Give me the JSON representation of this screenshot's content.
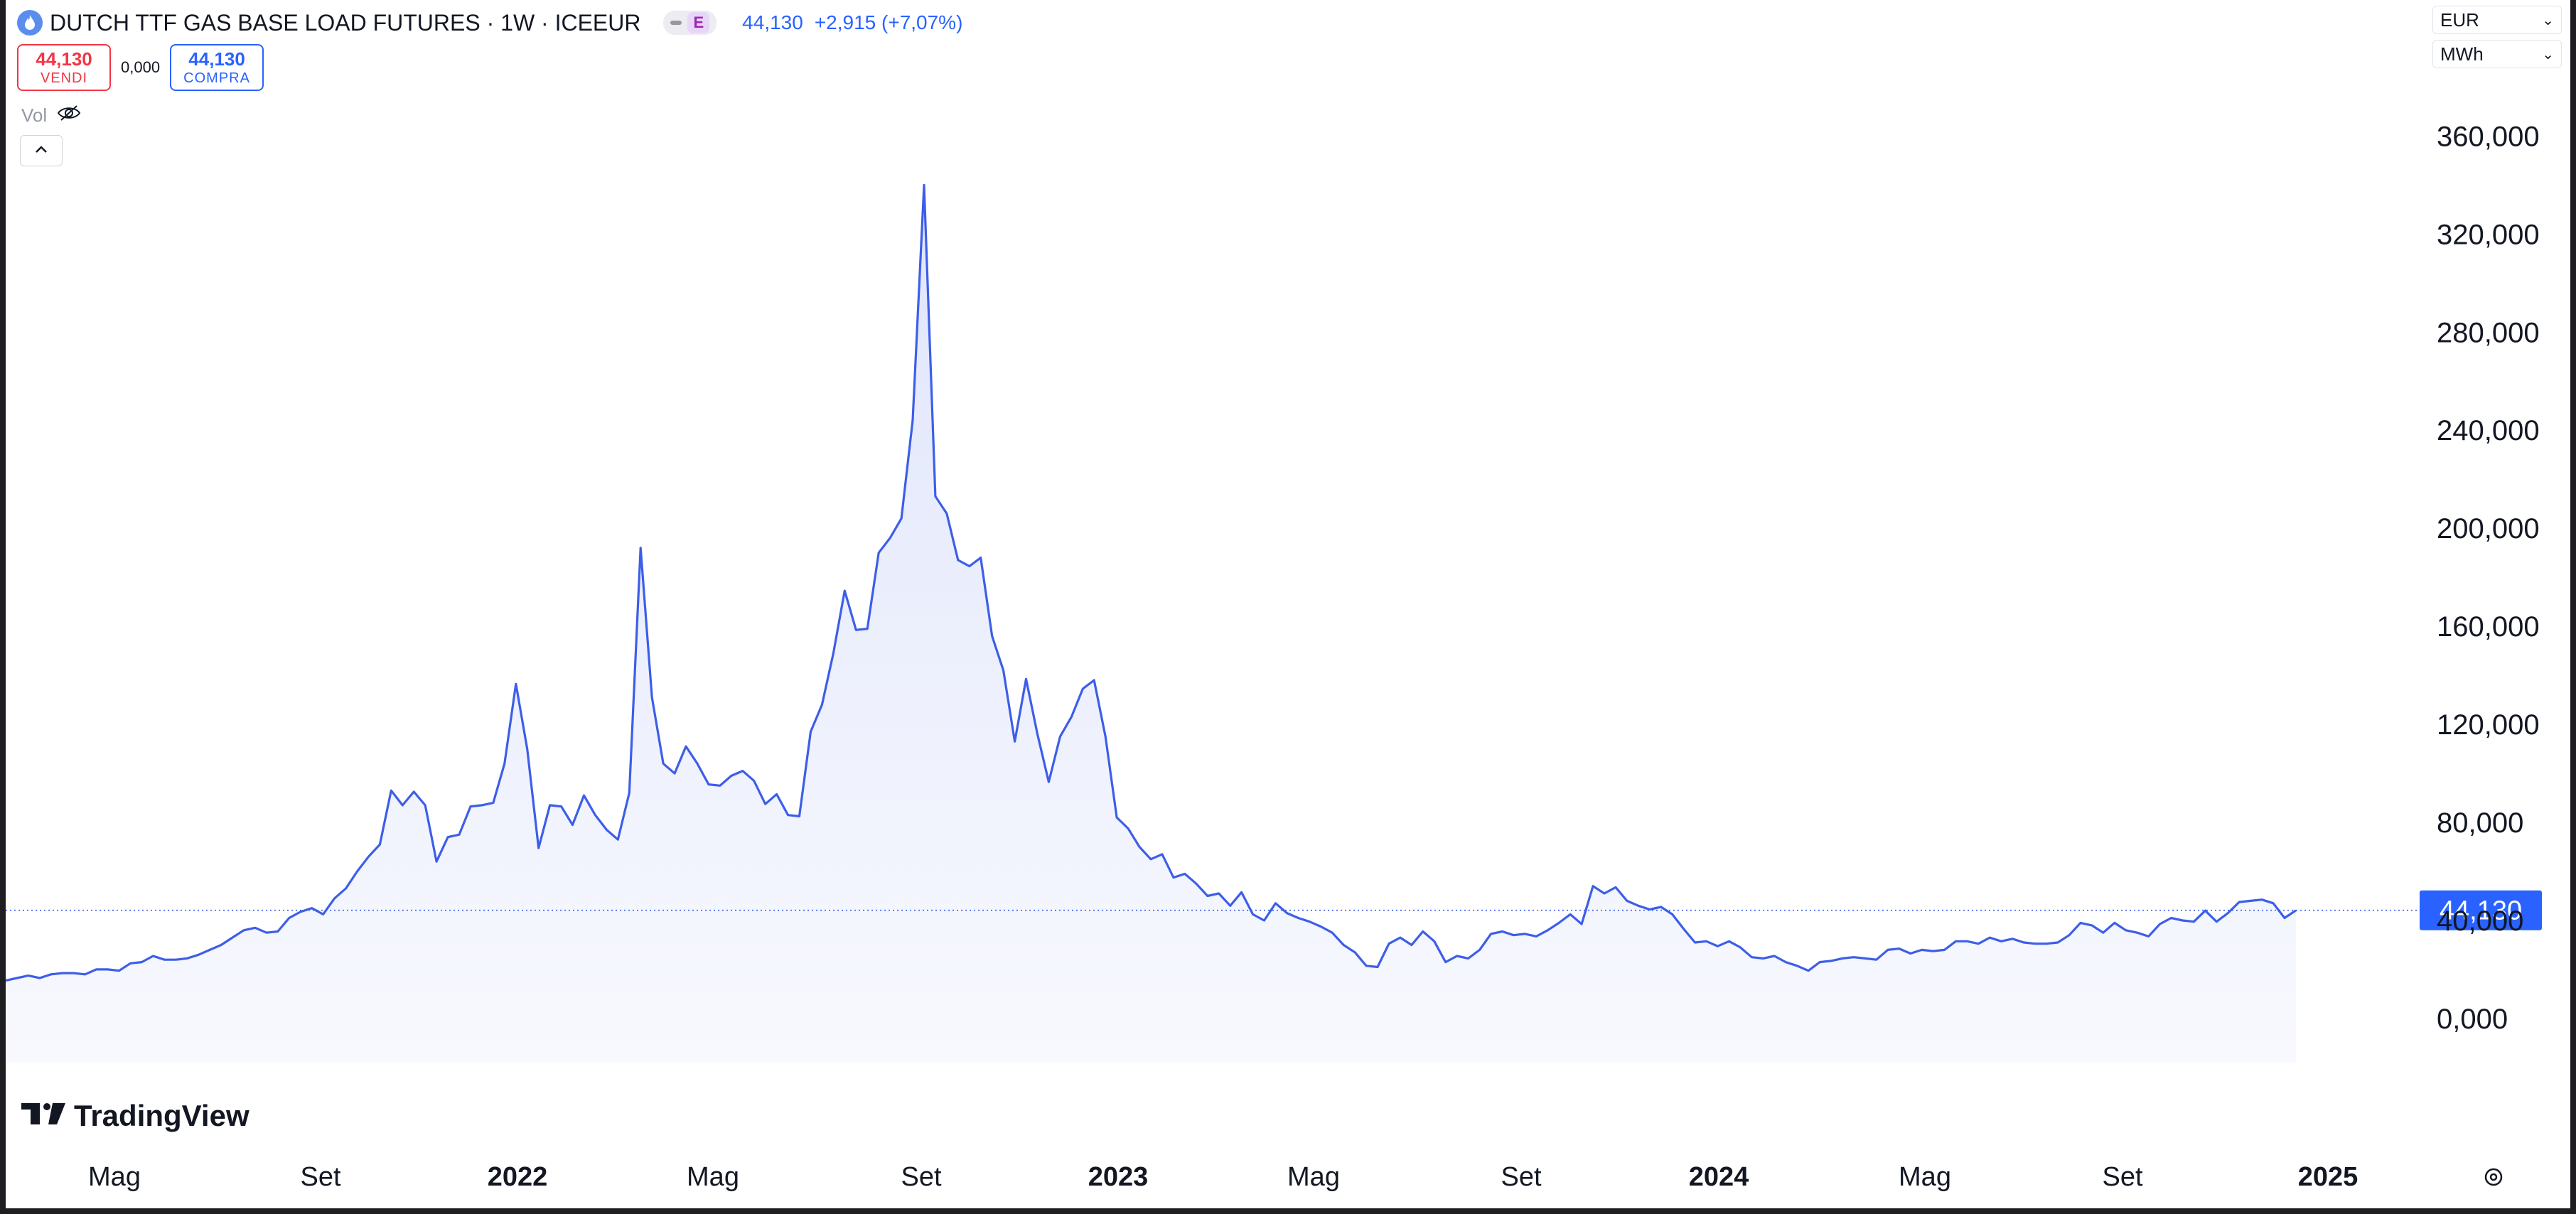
{
  "header": {
    "symbol_title": "DUTCH TTF GAS BASE LOAD FUTURES · 1W · ICEEUR",
    "exchange_badge": "E",
    "last_price": "44,130",
    "change": "+2,915 (+7,07%)"
  },
  "trade": {
    "sell_price": "44,130",
    "sell_label": "VENDI",
    "spread": "0,000",
    "buy_price": "44,130",
    "buy_label": "COMPRA"
  },
  "volume_label": "Vol",
  "currency_select": "EUR",
  "unit_select": "MWh",
  "watermark": "TradingView",
  "colors": {
    "line": "#3d5ee8",
    "area_top": "#dfe5fb",
    "area_bottom": "#f8f9fe",
    "price_label_bg": "#2962ff",
    "sell": "#f23645",
    "buy": "#2962ff"
  },
  "icons": [
    "flame-icon",
    "eye-off-icon",
    "chevron-up-icon",
    "chevron-down-icon",
    "settings-icon",
    "tradingview-logo-icon"
  ],
  "chart_data": {
    "type": "area",
    "title": "DUTCH TTF GAS BASE LOAD FUTURES · 1W · ICEEUR",
    "x_tick_labels": [
      "Mag",
      "Set",
      "2022",
      "Mag",
      "Set",
      "2023",
      "Mag",
      "Set",
      "2024",
      "Mag",
      "Set",
      "2025"
    ],
    "x_tick_bold": [
      false,
      false,
      true,
      false,
      false,
      true,
      false,
      false,
      true,
      false,
      false,
      true
    ],
    "y_tick_labels": [
      "0,000",
      "40,000",
      "80,000",
      "120,000",
      "160,000",
      "200,000",
      "240,000",
      "280,000",
      "320,000",
      "360,000"
    ],
    "y_tick_values": [
      0,
      40,
      80,
      120,
      160,
      200,
      240,
      280,
      320,
      360
    ],
    "ylim": [
      -18,
      372
    ],
    "y_unit": "EUR / MWh",
    "last_value_label": "44,130",
    "last_value": 44.13,
    "grid": false,
    "series": [
      {
        "values": [
          15.5,
          16.5,
          17.5,
          16.5,
          18,
          18.5,
          18.5,
          18,
          20,
          20,
          19.5,
          22.5,
          23,
          25.5,
          24,
          24,
          24.5,
          26,
          28,
          30,
          33,
          36,
          37,
          35,
          35.5,
          41,
          43.5,
          45,
          42.5,
          49,
          53,
          60,
          66,
          71,
          93,
          87,
          92.5,
          87,
          64,
          74,
          75,
          86.5,
          87,
          88,
          104,
          136.5,
          110,
          69.5,
          87,
          86.5,
          79,
          91,
          83,
          77,
          73,
          92,
          192,
          131,
          104,
          100,
          111,
          104,
          95.5,
          95,
          99,
          101,
          97,
          87.5,
          91.5,
          83,
          82.5,
          117,
          128,
          149,
          174.5,
          158.5,
          159,
          190,
          196,
          204,
          244,
          340,
          213,
          206,
          187,
          184.5,
          188,
          156,
          142,
          113,
          138.5,
          116,
          96.5,
          115,
          123,
          134.5,
          138,
          115,
          82,
          77.5,
          70,
          65,
          67,
          57.5,
          59,
          55,
          50,
          51,
          46,
          51.5,
          42.5,
          40,
          47,
          43,
          41,
          39.5,
          37.5,
          35,
          30,
          27,
          21.5,
          21,
          30.5,
          33,
          30,
          35.5,
          31.5,
          23,
          25.5,
          24.5,
          28,
          34.5,
          35.5,
          34,
          34.5,
          33.5,
          36,
          39,
          42.5,
          38.5,
          54,
          51,
          53.5,
          48,
          46,
          44.5,
          45.5,
          42.5,
          36.5,
          31,
          31.5,
          29.5,
          31.5,
          29,
          25,
          24.5,
          25.5,
          23,
          21.5,
          19.5,
          23,
          23.5,
          24.5,
          25,
          24.5,
          24,
          28,
          28.5,
          26.5,
          28,
          27.5,
          28,
          31.5,
          31.5,
          30.5,
          33,
          31.5,
          32.5,
          31,
          30.5,
          30.5,
          31,
          34,
          39,
          38,
          35,
          39,
          36,
          35,
          33.5,
          38.5,
          41,
          40,
          39.5,
          44,
          39.5,
          43,
          47.5,
          48,
          48.5,
          47,
          41,
          44.1
        ]
      }
    ]
  }
}
